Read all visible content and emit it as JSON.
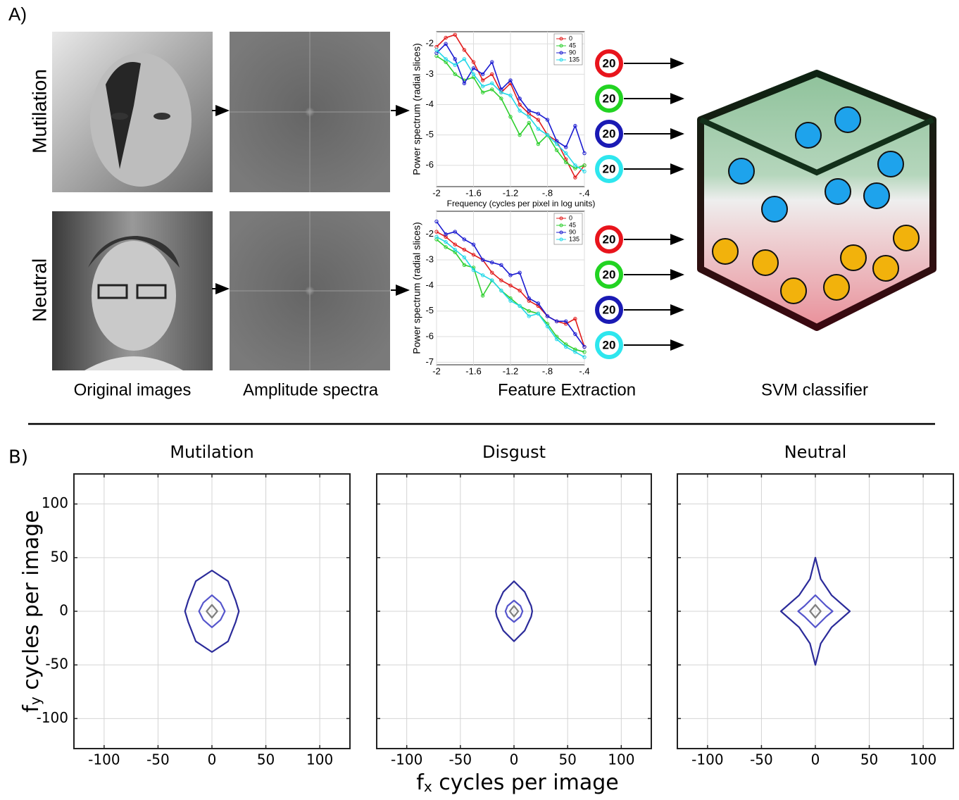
{
  "panel_a": {
    "label": "A)",
    "rows": [
      "Mutilation",
      "Neutral"
    ],
    "captions": [
      "Original images",
      "Amplitude spectra",
      "Feature Extraction",
      "SVM classifier"
    ],
    "badges": [
      {
        "label": "20",
        "color": "#e8141c"
      },
      {
        "label": "20",
        "color": "#22d322"
      },
      {
        "label": "20",
        "color": "#1a1ab4"
      },
      {
        "label": "20",
        "color": "#2ee6ee"
      },
      {
        "label": "20",
        "color": "#e8141c"
      },
      {
        "label": "20",
        "color": "#22d322"
      },
      {
        "label": "20",
        "color": "#1a1ab4"
      },
      {
        "label": "20",
        "color": "#2ee6ee"
      }
    ]
  },
  "panel_b": {
    "label": "B)",
    "xlabel": {
      "main": "f",
      "sub": "x",
      "rest": " cycles per image"
    },
    "ylabel": {
      "main": "f",
      "sub": "y",
      "rest": " cycles per image"
    }
  },
  "chart_data": [
    {
      "type": "line",
      "xlabel": "Frequency (cycles per pixel in log units)",
      "ylabel": "Power spectrum (radial slices)",
      "x": [
        -2,
        -1.9,
        -1.8,
        -1.7,
        -1.6,
        -1.5,
        -1.4,
        -1.3,
        -1.2,
        -1.1,
        -1,
        -0.9,
        -0.8,
        -0.7,
        -0.6,
        -0.5,
        -0.4
      ],
      "xlim": [
        -2,
        -0.4
      ],
      "xticks": [
        -2,
        -1.6,
        -1.2,
        {
          "value": -0.8,
          "label": "-.8"
        },
        {
          "value": -0.4,
          "label": "-.4"
        }
      ],
      "ylim": [
        -6.7,
        -1.6
      ],
      "yticks": [
        -2,
        -3,
        -4,
        -5,
        -6
      ],
      "grid": true,
      "legend": "upper right",
      "series": [
        {
          "name": "0",
          "color": "#e11b1b",
          "values": [
            -2.1,
            -1.8,
            -1.7,
            -2.2,
            -2.6,
            -3.2,
            -3.0,
            -3.6,
            -3.3,
            -4.0,
            -4.3,
            -4.5,
            -5.0,
            -5.2,
            -5.8,
            -6.4,
            -6.0
          ]
        },
        {
          "name": "45",
          "color": "#2fcf2f",
          "values": [
            -2.4,
            -2.6,
            -3.0,
            -3.2,
            -3.1,
            -3.6,
            -3.5,
            -3.8,
            -4.4,
            -5.0,
            -4.6,
            -5.3,
            -5.0,
            -5.5,
            -5.9,
            -6.1,
            -6.0
          ]
        },
        {
          "name": "90",
          "color": "#1b1bd0",
          "values": [
            -2.3,
            -2.0,
            -2.5,
            -3.3,
            -2.8,
            -3.0,
            -2.6,
            -3.5,
            -3.2,
            -3.8,
            -4.2,
            -4.3,
            -4.5,
            -5.2,
            -5.4,
            -4.7,
            -5.6
          ]
        },
        {
          "name": "135",
          "color": "#22d8e8",
          "values": [
            -2.2,
            -2.5,
            -2.7,
            -2.5,
            -3.0,
            -3.4,
            -3.3,
            -3.6,
            -3.7,
            -4.2,
            -4.4,
            -4.8,
            -5.0,
            -5.3,
            -5.6,
            -6.0,
            -6.2
          ]
        }
      ]
    },
    {
      "type": "line",
      "ylabel": "Power spectrum (radial slices)",
      "x": [
        -2,
        -1.9,
        -1.8,
        -1.7,
        -1.6,
        -1.5,
        -1.4,
        -1.3,
        -1.2,
        -1.1,
        -1,
        -0.9,
        -0.8,
        -0.7,
        -0.6,
        -0.5,
        -0.4
      ],
      "xlim": [
        -2,
        -0.4
      ],
      "xticks": [
        -2,
        -1.6,
        -1.2,
        {
          "value": -0.8,
          "label": "-.8"
        },
        {
          "value": -0.4,
          "label": "-.4"
        }
      ],
      "ylim": [
        -7.1,
        -1.1
      ],
      "yticks": [
        -2,
        -3,
        -4,
        -5,
        -6,
        -7
      ],
      "grid": true,
      "legend": "upper right",
      "series": [
        {
          "name": "0",
          "color": "#e11b1b",
          "values": [
            -1.9,
            -2.1,
            -2.4,
            -2.6,
            -2.8,
            -3.0,
            -3.5,
            -3.8,
            -4.0,
            -4.2,
            -4.6,
            -4.8,
            -5.2,
            -5.4,
            -5.5,
            -5.3,
            -6.4
          ]
        },
        {
          "name": "45",
          "color": "#2fcf2f",
          "values": [
            -2.2,
            -2.5,
            -2.7,
            -3.2,
            -3.3,
            -4.4,
            -3.8,
            -4.2,
            -4.5,
            -4.8,
            -5.0,
            -5.1,
            -5.5,
            -6.0,
            -6.3,
            -6.5,
            -6.6
          ]
        },
        {
          "name": "90",
          "color": "#1b1bd0",
          "values": [
            -1.5,
            -2.0,
            -1.9,
            -2.2,
            -2.4,
            -3.0,
            -3.1,
            -3.2,
            -3.6,
            -3.5,
            -4.5,
            -4.7,
            -5.2,
            -5.4,
            -5.4,
            -5.9,
            -6.4
          ]
        },
        {
          "name": "135",
          "color": "#22d8e8",
          "values": [
            -2.1,
            -2.3,
            -2.6,
            -2.9,
            -3.4,
            -3.6,
            -3.8,
            -4.2,
            -4.6,
            -4.8,
            -5.2,
            -5.1,
            -5.6,
            -6.1,
            -6.4,
            -6.6,
            -6.8
          ]
        }
      ]
    },
    {
      "type": "contour",
      "title": "Mutilation",
      "xlim": [
        -128,
        128
      ],
      "ylim": [
        -128,
        128
      ],
      "xticks": [
        -100,
        -50,
        0,
        50,
        100
      ],
      "yticks": [
        -100,
        -50,
        0,
        50,
        100
      ],
      "grid": true,
      "series": [
        {
          "color": "#2b2b9a",
          "x": [
            0,
            15,
            22,
            25,
            22,
            15,
            0,
            -15,
            -22,
            -25,
            -22,
            -15
          ],
          "values": [
            38,
            28,
            10,
            0,
            -10,
            -28,
            -38,
            -28,
            -10,
            0,
            10,
            28
          ]
        },
        {
          "color": "#5555cc",
          "x": [
            0,
            8,
            12,
            8,
            0,
            -8,
            -12,
            -8
          ],
          "values": [
            15,
            8,
            0,
            -8,
            -15,
            -8,
            0,
            8
          ]
        },
        {
          "color": "#808080",
          "x": [
            0,
            5,
            0,
            -5
          ],
          "values": [
            6,
            0,
            -6,
            0
          ]
        }
      ]
    },
    {
      "type": "contour",
      "title": "Disgust",
      "xlim": [
        -128,
        128
      ],
      "ylim": [
        -128,
        128
      ],
      "xticks": [
        -100,
        -50,
        0,
        50,
        100
      ],
      "yticks": [
        -100,
        -50,
        0,
        50,
        100
      ],
      "grid": true,
      "series": [
        {
          "color": "#2b2b9a",
          "x": [
            0,
            10,
            16,
            17,
            16,
            10,
            0,
            -10,
            -16,
            -17,
            -16,
            -10
          ],
          "values": [
            28,
            18,
            5,
            0,
            -5,
            -18,
            -28,
            -18,
            -5,
            0,
            5,
            18
          ]
        },
        {
          "color": "#5555cc",
          "x": [
            0,
            6,
            8,
            6,
            0,
            -6,
            -8,
            -6
          ],
          "values": [
            10,
            5,
            0,
            -5,
            -10,
            -5,
            0,
            5
          ]
        },
        {
          "color": "#808080",
          "x": [
            0,
            4,
            0,
            -4
          ],
          "values": [
            5,
            0,
            -5,
            0
          ]
        }
      ]
    },
    {
      "type": "contour",
      "title": "Neutral",
      "xlim": [
        -128,
        128
      ],
      "ylim": [
        -128,
        128
      ],
      "xticks": [
        -100,
        -50,
        0,
        50,
        100
      ],
      "yticks": [
        -100,
        -50,
        0,
        50,
        100
      ],
      "grid": true,
      "series": [
        {
          "color": "#2b2b9a",
          "x": [
            0,
            5,
            15,
            32,
            15,
            5,
            0,
            -5,
            -15,
            -32,
            -15,
            -5
          ],
          "values": [
            50,
            30,
            15,
            0,
            -15,
            -30,
            -50,
            -30,
            -15,
            0,
            15,
            30
          ]
        },
        {
          "color": "#5555cc",
          "x": [
            0,
            10,
            16,
            10,
            0,
            -10,
            -16,
            -10
          ],
          "values": [
            15,
            5,
            0,
            -5,
            -15,
            -5,
            0,
            5
          ]
        },
        {
          "color": "#808080",
          "x": [
            0,
            5,
            0,
            -5
          ],
          "values": [
            6,
            0,
            -6,
            0
          ]
        }
      ]
    }
  ]
}
